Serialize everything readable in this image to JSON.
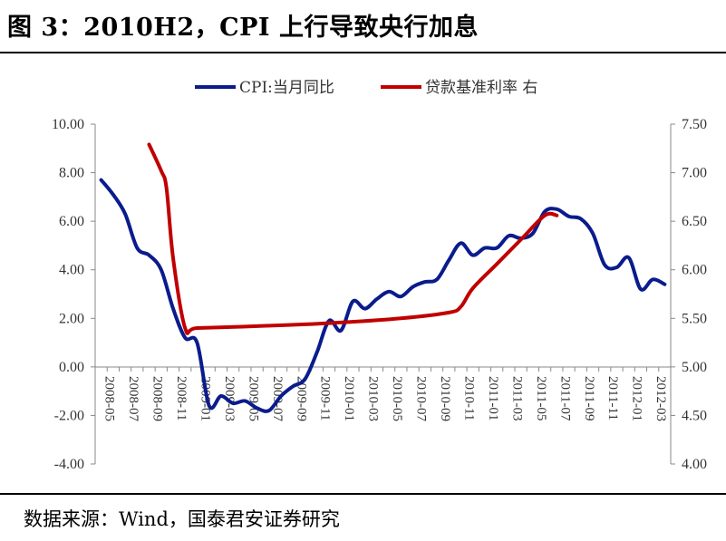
{
  "figure": {
    "title": "图 3：2010H2，CPI 上行导致央行加息",
    "source": "数据来源：Wind，国泰君安证券研究"
  },
  "colors": {
    "cpi": "#0a1c8c",
    "rate": "#c00000",
    "axis": "#888888",
    "text": "#333333"
  },
  "chart_data": {
    "type": "line",
    "title": "",
    "legend_position": "top",
    "grid": false,
    "x": [
      "2008-05",
      "2008-06",
      "2008-07",
      "2008-08",
      "2008-09",
      "2008-10",
      "2008-11",
      "2008-12",
      "2009-01",
      "2009-02",
      "2009-03",
      "2009-04",
      "2009-05",
      "2009-06",
      "2009-07",
      "2009-08",
      "2009-09",
      "2009-10",
      "2009-11",
      "2009-12",
      "2010-01",
      "2010-02",
      "2010-03",
      "2010-04",
      "2010-05",
      "2010-06",
      "2010-07",
      "2010-08",
      "2010-09",
      "2010-10",
      "2010-11",
      "2010-12",
      "2011-01",
      "2011-02",
      "2011-03",
      "2011-04",
      "2011-05",
      "2011-06",
      "2011-07",
      "2011-08",
      "2011-09",
      "2011-10",
      "2011-11",
      "2011-12",
      "2012-01",
      "2012-02",
      "2012-03",
      "2012-04"
    ],
    "x_tick_labels": [
      "2008-05",
      "2008-07",
      "2008-09",
      "2008-11",
      "2009-01",
      "2009-03",
      "2009-05",
      "2009-07",
      "2009-09",
      "2009-11",
      "2010-01",
      "2010-03",
      "2010-05",
      "2010-07",
      "2010-09",
      "2010-11",
      "2011-01",
      "2011-03",
      "2011-05",
      "2011-07",
      "2011-09",
      "2011-11",
      "2012-01",
      "2012-03"
    ],
    "y_left": {
      "ylim": [
        -4,
        10
      ],
      "ticks": [
        "-4.00",
        "-2.00",
        "0.00",
        "2.00",
        "4.00",
        "6.00",
        "8.00",
        "10.00"
      ]
    },
    "y_right": {
      "ylim": [
        4.0,
        7.5
      ],
      "ticks": [
        "4.00",
        "4.50",
        "5.00",
        "5.50",
        "6.00",
        "6.50",
        "7.00",
        "7.50"
      ]
    },
    "series": [
      {
        "name": "CPI:当月同比",
        "axis": "left",
        "values": [
          7.7,
          7.1,
          6.3,
          4.9,
          4.6,
          4.0,
          2.4,
          1.2,
          1.0,
          -1.6,
          -1.2,
          -1.5,
          -1.4,
          -1.7,
          -1.8,
          -1.2,
          -0.8,
          -0.5,
          0.6,
          1.9,
          1.5,
          2.7,
          2.4,
          2.8,
          3.1,
          2.9,
          3.3,
          3.5,
          3.6,
          4.4,
          5.1,
          4.6,
          4.9,
          4.9,
          5.4,
          5.3,
          5.5,
          6.4,
          6.5,
          6.2,
          6.1,
          5.5,
          4.2,
          4.1,
          4.5,
          3.2,
          3.6,
          3.4
        ]
      },
      {
        "name": "贷款基准利率 右",
        "axis": "right",
        "points": [
          [
            "2008-09",
            7.29
          ],
          [
            "2008-10",
            7.02
          ],
          [
            "2008-10",
            6.84
          ],
          [
            "2008-11",
            6.12
          ],
          [
            "2008-12",
            5.4
          ],
          [
            "2009-01",
            5.4
          ],
          [
            "2009-06",
            5.42
          ],
          [
            "2009-12",
            5.45
          ],
          [
            "2010-06",
            5.5
          ],
          [
            "2010-10",
            5.56
          ],
          [
            "2010-11",
            5.62
          ],
          [
            "2010-12",
            5.81
          ],
          [
            "2011-02",
            6.06
          ],
          [
            "2011-04",
            6.31
          ],
          [
            "2011-06",
            6.56
          ],
          [
            "2011-07",
            6.56
          ]
        ]
      }
    ]
  }
}
